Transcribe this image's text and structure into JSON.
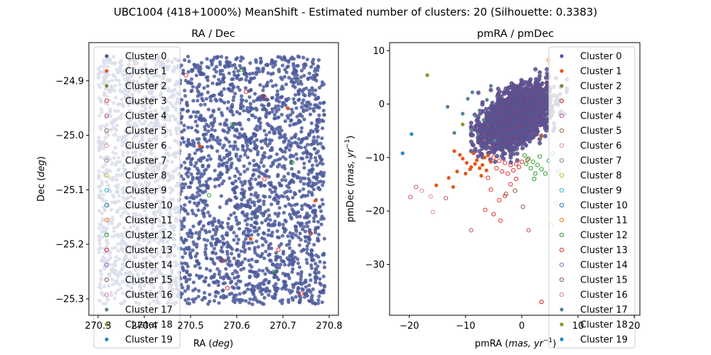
{
  "figure": {
    "title": "UBC1004 (418+1000%) MeanShift - Estimated number of clusters: 20 (Silhouette: 0.3383)"
  },
  "legend_labels": [
    "Cluster 0",
    "Cluster 1",
    "Cluster 2",
    "Cluster 3",
    "Cluster 4",
    "Cluster 5",
    "Cluster 6",
    "Cluster 7",
    "Cluster 8",
    "Cluster 9",
    "Cluster 10",
    "Cluster 11",
    "Cluster 12",
    "Cluster 13",
    "Cluster 14",
    "Cluster 15",
    "Cluster 16",
    "Cluster 17",
    "Cluster 18",
    "Cluster 19"
  ],
  "legend_colors": [
    "#4c5a9c",
    "#e8541a",
    "#6f8e3a",
    "#e03434",
    "#c0508e",
    "#9a6a4a",
    "#e487b6",
    "#8c8c7a",
    "#c7b61a",
    "#27b9c4",
    "#1f77b4",
    "#ff7f0e",
    "#2ca02c",
    "#d62728",
    "#9467bd",
    "#8c564b",
    "#e377c2",
    "#5c7f93",
    "#7f9a2a",
    "#1f88c9"
  ],
  "legend_filled": [
    true,
    true,
    true,
    false,
    false,
    false,
    false,
    false,
    false,
    false,
    false,
    false,
    false,
    false,
    false,
    false,
    false,
    true,
    true,
    true
  ],
  "chart_data": [
    {
      "type": "scatter",
      "title": "RA / Dec",
      "xlabel": "RA (deg)",
      "ylabel": "Dec (deg)",
      "xlim": [
        270.28,
        270.82
      ],
      "ylim": [
        -25.33,
        -24.83
      ],
      "xticks": [
        270.3,
        270.4,
        270.5,
        270.6,
        270.7,
        270.8
      ],
      "xtick_labels": [
        "270.3",
        "270.4",
        "270.5",
        "270.6",
        "270.7",
        "270.8"
      ],
      "yticks": [
        -24.9,
        -25.0,
        -25.1,
        -25.2,
        -25.3
      ],
      "ytick_labels": [
        "−24.9",
        "−25.0",
        "−25.1",
        "−25.2",
        "−25.3"
      ],
      "legend_position": "top-left",
      "grid": false,
      "field": {
        "ra_range": [
          270.3,
          270.79
        ],
        "dec_range": [
          -25.31,
          -24.855
        ],
        "main_cluster": "Cluster 0",
        "approx_points": 3200
      },
      "series": [
        {
          "name": "Cluster 1",
          "x": [
            270.38,
            270.52,
            270.63,
            270.71,
            270.46,
            270.77
          ],
          "y": [
            -24.87,
            -25.02,
            -25.19,
            -24.95,
            -25.27,
            -25.12
          ]
        },
        {
          "name": "Cluster 3",
          "x": [
            270.41,
            270.57,
            270.66,
            270.74,
            270.49,
            270.69,
            270.62
          ],
          "y": [
            -24.96,
            -25.23,
            -25.08,
            -25.29,
            -24.89,
            -25.21,
            -24.92
          ]
        },
        {
          "name": "Cluster 12",
          "x": [
            270.54,
            270.61,
            270.72,
            270.45,
            270.68,
            270.59
          ],
          "y": [
            -25.11,
            -24.88,
            -25.05,
            -25.16,
            -25.25,
            -24.98
          ]
        },
        {
          "name": "Cluster 13",
          "x": [
            270.43,
            270.66,
            270.58,
            270.76
          ],
          "y": [
            -25.06,
            -24.93,
            -25.28,
            -25.18
          ]
        },
        {
          "name": "Cluster 17",
          "x": [
            270.36,
            270.51,
            270.73
          ],
          "y": [
            -25.14,
            -25.24,
            -24.9
          ]
        }
      ]
    },
    {
      "type": "scatter",
      "title": "pmRA / pmDec",
      "xlabel": "pmRA (mas, yr^-1)",
      "ylabel": "pmDec (mas, yr^-1)",
      "xlim": [
        -23.5,
        21.0
      ],
      "ylim": [
        -39.5,
        11.5
      ],
      "xticks": [
        -20,
        -10,
        0,
        10,
        20
      ],
      "xtick_labels": [
        "−20",
        "−10",
        "0",
        "10",
        "20"
      ],
      "yticks": [
        10,
        0,
        -10,
        -20,
        -30
      ],
      "ytick_labels": [
        "10",
        "0",
        "−10",
        "−20",
        "−30"
      ],
      "legend_position": "top-right",
      "grid": false,
      "field": {
        "center": [
          -1.0,
          -2.5
        ],
        "spread": [
          3.8,
          3.2
        ],
        "main_cluster": "Cluster 0",
        "approx_points": 2600
      },
      "series": [
        {
          "name": "Cluster 1",
          "x": [
            -12,
            -11,
            -10.5,
            -9.8,
            -9,
            -8.6,
            -8,
            -7.5,
            -7,
            -6.6,
            -6,
            -5.5,
            -13,
            -11.5,
            -10,
            -9.2,
            -8.3,
            -7.2,
            -6.3,
            -15.2,
            -12.2
          ],
          "y": [
            -8.8,
            -9.5,
            -10.2,
            -11,
            -11.8,
            -9.2,
            -10.5,
            -12,
            -11.4,
            -10,
            -9.6,
            -10.8,
            -13.8,
            -12.6,
            -13,
            -12.2,
            -11.2,
            -13.4,
            -12.4,
            -15.2,
            -15.5
          ]
        },
        {
          "name": "Cluster 3",
          "x": [
            -5,
            -4,
            -3,
            -2,
            -1,
            0,
            1,
            -4.5,
            -3.5,
            -2.5,
            -1.5,
            -0.5,
            -6,
            -5.5,
            -3,
            -2,
            -4,
            -1,
            -6.5,
            -5,
            -3.8
          ],
          "y": [
            -10,
            -10.6,
            -11,
            -11.4,
            -11.2,
            -10.8,
            -10.4,
            -12,
            -12.6,
            -13,
            -12.4,
            -11.8,
            -13.8,
            -16,
            -17.2,
            -15,
            -18,
            -14,
            -19.8,
            -20.6,
            -21.8
          ]
        },
        {
          "name": "Cluster 4",
          "x": [
            -19.8,
            -18.8,
            -13.5,
            -9,
            1.2
          ],
          "y": [
            -17.4,
            -15.5,
            -17.6,
            -23.6,
            -23.6
          ]
        },
        {
          "name": "Cluster 6",
          "x": [
            -15.8,
            -17.8,
            -16.2
          ],
          "y": [
            -20.2,
            -16.2,
            -17.3
          ]
        },
        {
          "name": "Cluster 11",
          "x": [
            5.2,
            4.8,
            6,
            3.5
          ],
          "y": [
            -22.6,
            8.2,
            -18.5,
            -6
          ]
        },
        {
          "name": "Cluster 12",
          "x": [
            0.5,
            1.2,
            2,
            2.8,
            3.5,
            4.2,
            1.6,
            2.4,
            3.2,
            0.8,
            4.8,
            5.5,
            2.2,
            6.5
          ],
          "y": [
            -9.6,
            -10.2,
            -10.8,
            -11.4,
            -12.2,
            -13,
            -12,
            -13,
            -9.8,
            -11.2,
            -10.6,
            -9.2,
            -14,
            -12.6
          ]
        },
        {
          "name": "Cluster 13",
          "x": [
            3.5
          ],
          "y": [
            -37
          ]
        },
        {
          "name": "Cluster 15",
          "x": [
            -1.2,
            0.2,
            -2.8
          ],
          "y": [
            -16.2,
            -19.2,
            -16.8
          ]
        },
        {
          "name": "Cluster 17",
          "x": [
            -7.5,
            -6.8,
            -8.2,
            -9,
            -7.8,
            -6.2,
            -10.5,
            -8.8,
            -13.2,
            -12,
            -5.5,
            -4.8,
            -9.6
          ],
          "y": [
            -1.2,
            -3,
            -2.2,
            -4.8,
            -5.6,
            0.8,
            -1.8,
            2.2,
            -0.5,
            -5.4,
            3.4,
            -6.8,
            1
          ]
        },
        {
          "name": "Cluster 18",
          "x": [
            -16.8,
            -10.5
          ],
          "y": [
            5.4,
            -3.8
          ]
        },
        {
          "name": "Cluster 19",
          "x": [
            -21.2,
            -19.6
          ],
          "y": [
            -9.2,
            -5.6
          ]
        }
      ]
    }
  ]
}
